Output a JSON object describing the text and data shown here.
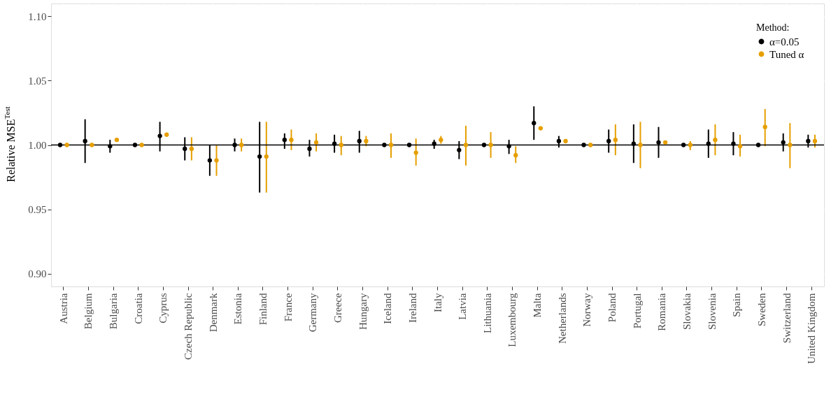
{
  "chart_data": {
    "type": "scatter",
    "ylabel": "Relative MSE$^{Test}$",
    "legend_title": "Method:",
    "legend": "top right",
    "grid": true,
    "marker": "circle",
    "categories": [
      "Austria",
      "Belgium",
      "Bulgaria",
      "Croatia",
      "Cyprus",
      "Czech Republic",
      "Denmark",
      "Estonia",
      "Finland",
      "France",
      "Germany",
      "Greece",
      "Hungary",
      "Iceland",
      "Ireland",
      "Italy",
      "Latvia",
      "Lithuania",
      "Luxembourg",
      "Malta",
      "Netherlands",
      "Norway",
      "Poland",
      "Portugal",
      "Romania",
      "Slovakia",
      "Slovenia",
      "Spain",
      "Sweden",
      "Switzerland",
      "United Kingdom"
    ],
    "ylim": [
      0.89,
      1.11
    ],
    "yticks": [
      {
        "value": 0.9,
        "label": "0.90"
      },
      {
        "value": 0.95,
        "label": "0.95"
      },
      {
        "value": 1.0,
        "label": "1.00"
      },
      {
        "value": 1.05,
        "label": "1.05"
      },
      {
        "value": 1.1,
        "label": "1.10"
      }
    ],
    "ref_lines": [
      {
        "axis": "y",
        "value": 1.0,
        "color": "#000000"
      }
    ],
    "series": [
      {
        "name": "α=0.05",
        "color": "#000000",
        "values": [
          1.0,
          1.003,
          0.999,
          1.0,
          1.007,
          0.997,
          0.988,
          1.0,
          0.991,
          1.004,
          0.997,
          1.001,
          1.003,
          1.0,
          1.0,
          1.001,
          0.996,
          1.0,
          0.999,
          1.017,
          1.003,
          1.0,
          1.003,
          1.001,
          1.002,
          1.0,
          1.001,
          1.001,
          1.0,
          1.002,
          1.003
        ],
        "errors": [
          null,
          [
            0.986,
            1.02
          ],
          [
            0.994,
            1.004
          ],
          null,
          [
            0.995,
            1.018
          ],
          [
            0.988,
            1.006
          ],
          [
            0.976,
            1.0
          ],
          [
            0.995,
            1.005
          ],
          [
            0.963,
            1.018
          ],
          [
            0.997,
            1.009
          ],
          [
            0.991,
            1.004
          ],
          [
            0.994,
            1.008
          ],
          [
            0.994,
            1.011
          ],
          null,
          null,
          [
            0.997,
            1.004
          ],
          [
            0.989,
            1.003
          ],
          null,
          [
            0.993,
            1.004
          ],
          [
            1.004,
            1.03
          ],
          [
            0.998,
            1.007
          ],
          null,
          [
            0.994,
            1.012
          ],
          [
            0.986,
            1.016
          ],
          [
            0.99,
            1.014
          ],
          null,
          [
            0.99,
            1.012
          ],
          [
            0.992,
            1.01
          ],
          null,
          [
            0.995,
            1.009
          ],
          [
            0.998,
            1.008
          ]
        ]
      },
      {
        "name": "Tuned α",
        "color": "#e69f00",
        "values": [
          1.0,
          1.0,
          1.004,
          1.0,
          1.008,
          0.997,
          0.988,
          1.0,
          0.991,
          1.004,
          1.002,
          1.0,
          1.003,
          1.0,
          0.994,
          1.004,
          1.0,
          1.0,
          0.992,
          1.013,
          1.003,
          1.0,
          1.004,
          1.0,
          1.002,
          1.0,
          1.004,
          0.999,
          1.014,
          1.0,
          1.003
        ],
        "errors": [
          null,
          null,
          null,
          null,
          null,
          [
            0.988,
            1.006
          ],
          [
            0.976,
            1.0
          ],
          [
            0.995,
            1.005
          ],
          [
            0.963,
            1.018
          ],
          [
            0.996,
            1.012
          ],
          [
            0.995,
            1.009
          ],
          [
            0.992,
            1.007
          ],
          [
            0.999,
            1.007
          ],
          [
            0.99,
            1.009
          ],
          [
            0.984,
            1.005
          ],
          [
            1.001,
            1.007
          ],
          [
            0.984,
            1.015
          ],
          [
            0.99,
            1.01
          ],
          [
            0.986,
            0.999
          ],
          null,
          null,
          null,
          [
            0.992,
            1.016
          ],
          [
            0.982,
            1.018
          ],
          null,
          [
            0.996,
            1.003
          ],
          [
            0.992,
            1.016
          ],
          [
            0.991,
            1.008
          ],
          [
            0.999,
            1.028
          ],
          [
            0.982,
            1.017
          ],
          [
            0.998,
            1.008
          ]
        ]
      }
    ]
  }
}
